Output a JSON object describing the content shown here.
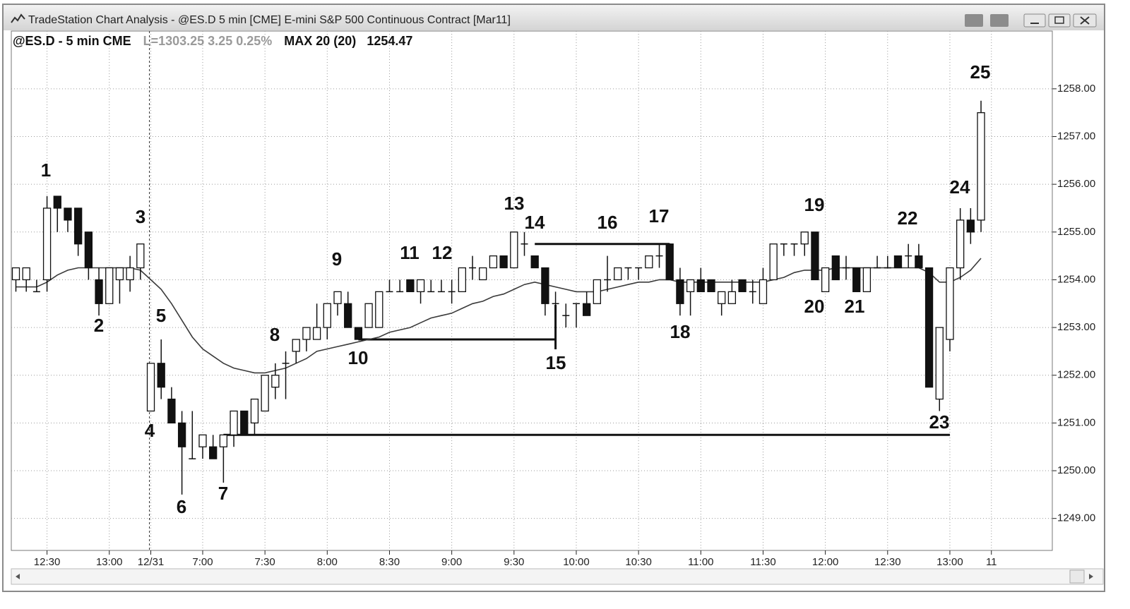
{
  "chart_data": {
    "type": "candlestick",
    "title": "TradeStation Chart Analysis - @ES.D 5 min [CME] E-mini S&P 500 Continuous Contract [Mar11]",
    "symbol": "@ES.D - 5 min CME",
    "quote": "L=1303.25 3.25 0.25%",
    "indicator": {
      "name": "MAX 20 (20)",
      "value": 1254.47,
      "color": "#3a3a3a",
      "values": [
        1253.85,
        1253.85,
        1253.85,
        1253.95,
        1254.1,
        1254.2,
        1254.25,
        1254.25,
        1254.25,
        1254.25,
        1254.25,
        1254.25,
        1254.2,
        1254.0,
        1253.8,
        1253.5,
        1253.15,
        1252.8,
        1252.55,
        1252.4,
        1252.25,
        1252.15,
        1252.1,
        1252.05,
        1252.05,
        1252.1,
        1252.15,
        1252.25,
        1252.35,
        1252.5,
        1252.55,
        1252.6,
        1252.65,
        1252.7,
        1252.75,
        1252.8,
        1252.9,
        1252.95,
        1253.0,
        1253.1,
        1253.2,
        1253.25,
        1253.3,
        1253.4,
        1253.5,
        1253.55,
        1253.65,
        1253.7,
        1253.8,
        1253.9,
        1253.95,
        1253.9,
        1253.85,
        1253.8,
        1253.75,
        1253.75,
        1253.75,
        1253.8,
        1253.85,
        1253.9,
        1253.95,
        1253.95,
        1254.0,
        1254.0,
        1253.95,
        1253.95,
        1253.95,
        1253.95,
        1253.95,
        1253.95,
        1253.95,
        1253.95,
        1253.95,
        1254.0,
        1254.05,
        1254.15,
        1254.2,
        1254.2,
        1254.2,
        1254.25,
        1254.25,
        1254.25,
        1254.25,
        1254.25,
        1254.25,
        1254.25,
        1254.25,
        1254.25,
        1254.15,
        1253.95,
        1253.95,
        1254.05,
        1254.2,
        1254.45,
        null
      ]
    },
    "categories": [
      null,
      null,
      null,
      "12:30",
      null,
      null,
      null,
      null,
      null,
      "13:00",
      null,
      null,
      null,
      "12/31",
      null,
      null,
      null,
      null,
      "7:00",
      null,
      null,
      null,
      null,
      null,
      "7:30",
      null,
      null,
      null,
      null,
      null,
      "8:00",
      null,
      null,
      null,
      null,
      null,
      "8:30",
      null,
      null,
      null,
      null,
      null,
      "9:00",
      null,
      null,
      null,
      null,
      null,
      "9:30",
      null,
      null,
      null,
      null,
      null,
      "10:00",
      null,
      null,
      null,
      null,
      null,
      "10:30",
      null,
      null,
      null,
      null,
      null,
      "11:00",
      null,
      null,
      null,
      null,
      null,
      "11:30",
      null,
      null,
      null,
      null,
      null,
      "12:00",
      null,
      null,
      null,
      null,
      null,
      "12:30",
      null,
      null,
      null,
      null,
      null,
      "13:00",
      null,
      null,
      null,
      "11"
    ],
    "open": [
      1254.0,
      1254.0,
      1253.75,
      1254.0,
      1255.75,
      1255.5,
      1255.5,
      1255.0,
      1254.0,
      1253.5,
      1254.0,
      1254.0,
      1254.25,
      1251.25,
      1252.25,
      1251.5,
      1251.0,
      1250.25,
      1250.5,
      1250.5,
      1250.5,
      1250.75,
      1251.25,
      1251.0,
      1251.25,
      1251.75,
      1252.25,
      1252.5,
      1252.75,
      1252.75,
      1253.0,
      1253.5,
      1253.5,
      1253.0,
      1253.0,
      1253.0,
      1253.75,
      1253.75,
      1254.0,
      1253.75,
      1253.75,
      1253.75,
      1253.75,
      1253.75,
      1254.25,
      1254.0,
      1254.25,
      1254.5,
      1254.25,
      1254.75,
      1254.5,
      1254.25,
      1253.5,
      1253.25,
      1253.5,
      1253.5,
      1253.5,
      1254.0,
      1254.0,
      1254.25,
      1254.25,
      1254.25,
      1254.5,
      1254.75,
      1254.0,
      1253.75,
      1254.0,
      1254.0,
      1253.5,
      1253.5,
      1254.0,
      1253.75,
      1253.5,
      1254.0,
      1254.75,
      1254.75,
      1254.75,
      1255.0,
      1253.75,
      1254.5,
      1254.25,
      1254.25,
      1253.75,
      1254.25,
      1254.25,
      1254.5,
      1254.5,
      1254.5,
      1254.25,
      1251.5,
      1252.75,
      1254.25,
      1255.25,
      1255.25,
      null
    ],
    "high": [
      1254.25,
      1254.25,
      1254.0,
      1255.75,
      1255.75,
      1255.5,
      1255.5,
      1255.0,
      1254.25,
      1254.25,
      1254.25,
      1254.5,
      1254.75,
      1252.25,
      1252.75,
      1251.75,
      1251.25,
      1251.25,
      1250.75,
      1250.75,
      1250.75,
      1251.25,
      1251.25,
      1251.5,
      1252.0,
      1252.25,
      1252.5,
      1252.75,
      1253.0,
      1253.5,
      1253.5,
      1253.75,
      1253.75,
      1253.0,
      1253.5,
      1253.75,
      1254.0,
      1254.0,
      1254.0,
      1254.0,
      1254.0,
      1254.0,
      1254.0,
      1254.25,
      1254.5,
      1254.25,
      1254.5,
      1254.5,
      1255.0,
      1255.0,
      1254.5,
      1254.25,
      1253.75,
      1253.5,
      1253.5,
      1253.75,
      1254.0,
      1254.5,
      1254.25,
      1254.25,
      1254.25,
      1254.5,
      1254.75,
      1254.75,
      1254.25,
      1254.0,
      1254.25,
      1254.0,
      1253.75,
      1254.0,
      1254.0,
      1254.0,
      1254.25,
      1254.75,
      1254.75,
      1254.75,
      1255.0,
      1255.0,
      1254.25,
      1254.5,
      1254.5,
      1254.25,
      1254.25,
      1254.5,
      1254.5,
      1254.5,
      1254.75,
      1254.75,
      1254.25,
      1253.0,
      1254.25,
      1255.5,
      1255.5,
      1257.75,
      null
    ],
    "low": [
      1253.75,
      1253.75,
      1253.75,
      1253.75,
      1255.0,
      1255.0,
      1254.5,
      1254.0,
      1253.25,
      1253.5,
      1253.5,
      1253.75,
      1254.0,
      1251.25,
      1251.5,
      1251.0,
      1249.5,
      1250.25,
      1250.25,
      1250.25,
      1249.75,
      1250.5,
      1250.75,
      1250.75,
      1251.25,
      1251.5,
      1251.5,
      1252.25,
      1252.5,
      1252.75,
      1252.75,
      1253.25,
      1253.0,
      1252.75,
      1253.0,
      1253.0,
      1253.75,
      1253.75,
      1253.75,
      1253.5,
      1253.75,
      1253.75,
      1253.5,
      1253.75,
      1254.0,
      1254.0,
      1254.25,
      1254.25,
      1254.25,
      1254.5,
      1254.25,
      1253.25,
      1253.0,
      1253.0,
      1253.0,
      1253.25,
      1253.5,
      1253.75,
      1254.0,
      1254.0,
      1254.0,
      1254.25,
      1254.25,
      1254.0,
      1253.25,
      1253.25,
      1253.75,
      1253.75,
      1253.25,
      1253.5,
      1253.75,
      1253.5,
      1253.5,
      1254.0,
      1254.5,
      1254.5,
      1254.5,
      1254.0,
      1253.75,
      1254.0,
      1254.0,
      1253.75,
      1253.75,
      1254.25,
      1254.25,
      1254.25,
      1254.25,
      1254.25,
      1251.75,
      1251.25,
      1252.5,
      1254.0,
      1254.75,
      1255.0,
      null
    ],
    "close": [
      1254.25,
      1254.25,
      1253.75,
      1255.5,
      1255.5,
      1255.25,
      1254.75,
      1254.25,
      1253.5,
      1254.25,
      1254.25,
      1254.25,
      1254.75,
      1252.25,
      1251.75,
      1251.0,
      1250.5,
      1250.25,
      1250.75,
      1250.25,
      1250.75,
      1251.25,
      1250.75,
      1251.5,
      1252.0,
      1252.0,
      1252.25,
      1252.75,
      1253.0,
      1253.0,
      1253.5,
      1253.75,
      1253.0,
      1252.75,
      1253.5,
      1253.75,
      1253.75,
      1253.75,
      1253.75,
      1254.0,
      1253.75,
      1253.75,
      1253.75,
      1254.25,
      1254.25,
      1254.25,
      1254.5,
      1254.25,
      1255.0,
      1254.75,
      1254.25,
      1253.5,
      1253.5,
      1253.25,
      1253.5,
      1253.25,
      1254.0,
      1254.0,
      1254.25,
      1254.25,
      1254.25,
      1254.5,
      1254.5,
      1254.0,
      1253.5,
      1254.0,
      1253.75,
      1253.75,
      1253.75,
      1253.75,
      1253.75,
      1253.75,
      1254.0,
      1254.75,
      1254.75,
      1254.75,
      1255.0,
      1254.0,
      1254.25,
      1254.0,
      1254.25,
      1253.75,
      1254.25,
      1254.25,
      1254.25,
      1254.25,
      1254.5,
      1254.25,
      1251.75,
      1253.0,
      1254.25,
      1255.25,
      1255.0,
      1257.5,
      null
    ],
    "levels": [
      1250.75,
      1252.75,
      1254.75
    ],
    "annotations": [
      "1",
      "2",
      "3",
      "4",
      "5",
      "6",
      "7",
      "8",
      "9",
      "10",
      "11",
      "12",
      "13",
      "14",
      "15",
      "16",
      "17",
      "18",
      "19",
      "20",
      "21",
      "22",
      "23",
      "24",
      "25"
    ],
    "ylim": [
      1248.33,
      1259.21
    ],
    "yticks": [
      {
        "value": 1249,
        "label": "1249.00"
      },
      {
        "value": 1250,
        "label": "1250.00"
      },
      {
        "value": 1251,
        "label": "1251.00"
      },
      {
        "value": 1252,
        "label": "1252.00"
      },
      {
        "value": 1253,
        "label": "1253.00"
      },
      {
        "value": 1254,
        "label": "1254.00"
      },
      {
        "value": 1255,
        "label": "1255.00"
      },
      {
        "value": 1256,
        "label": "1256.00"
      },
      {
        "value": 1257,
        "label": "1257.00"
      },
      {
        "value": 1258,
        "label": "1258.00"
      }
    ],
    "grid": true,
    "up_color": "#ffffff",
    "down_color": "#111111"
  }
}
